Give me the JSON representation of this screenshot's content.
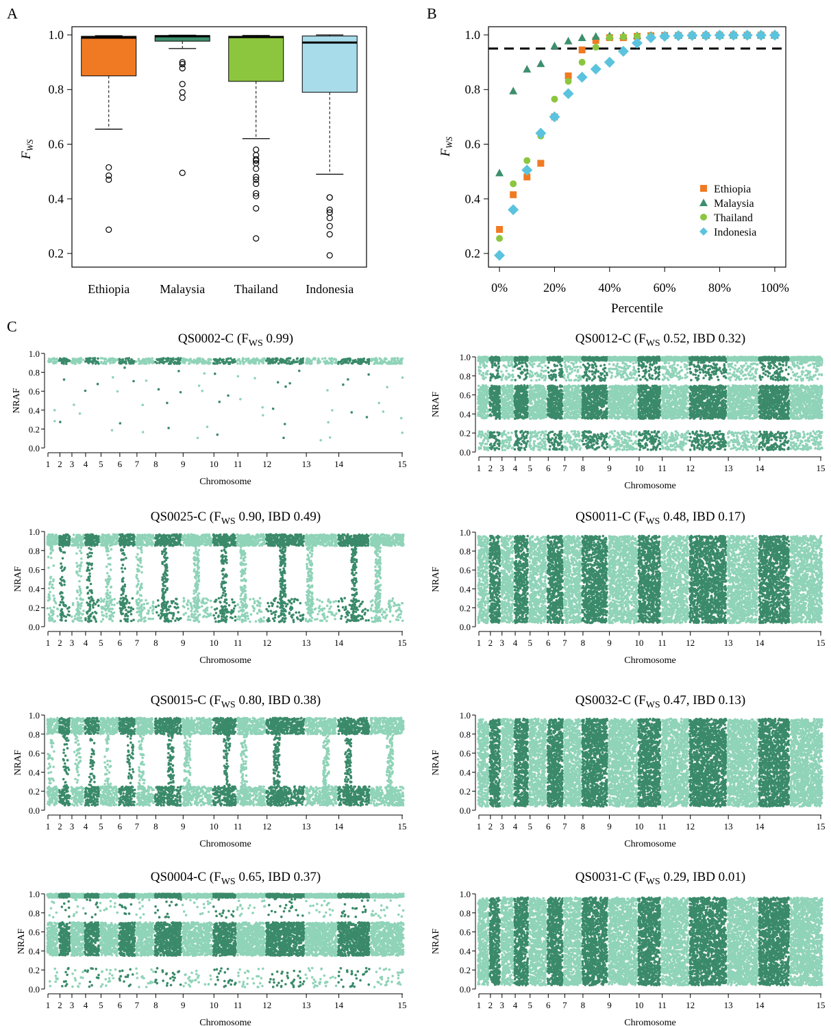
{
  "panels": {
    "a": "A",
    "b": "B",
    "c": "C"
  },
  "colors": {
    "Ethiopia": "#f07a23",
    "Malaysia": "#3d8f6e",
    "Thailand": "#8cc63f",
    "Indonesia": "#a8dcea",
    "indonesia_marker": "#5bc3de",
    "chrom_dark": "#3a8a6a",
    "chrom_light": "#8fd3b8",
    "threshold": "#000000"
  },
  "chart_data": [
    {
      "id": "A",
      "type": "box",
      "ylabel": "F",
      "ylabel_sub": "WS",
      "ylim": [
        0.15,
        1.03
      ],
      "yticks": [
        "0.2",
        "0.4",
        "0.6",
        "0.8",
        "1.0"
      ],
      "categories": [
        "Ethiopia",
        "Malaysia",
        "Thailand",
        "Indonesia"
      ],
      "boxes": [
        {
          "name": "Ethiopia",
          "whisker_low": 0.655,
          "q1": 0.85,
          "median": 0.99,
          "q3": 0.995,
          "whisker_high": 0.997,
          "outliers": [
            0.515,
            0.485,
            0.47,
            0.287
          ]
        },
        {
          "name": "Malaysia",
          "whisker_low": 0.95,
          "q1": 0.977,
          "median": 0.995,
          "q3": 0.998,
          "whisker_high": 0.999,
          "outliers": [
            0.9,
            0.893,
            0.878,
            0.82,
            0.79,
            0.77,
            0.495
          ]
        },
        {
          "name": "Thailand",
          "whisker_low": 0.62,
          "q1": 0.83,
          "median": 0.992,
          "q3": 0.995,
          "whisker_high": 0.998,
          "outliers": [
            0.58,
            0.56,
            0.545,
            0.54,
            0.53,
            0.51,
            0.48,
            0.47,
            0.455,
            0.42,
            0.41,
            0.365,
            0.255
          ]
        },
        {
          "name": "Indonesia",
          "whisker_low": 0.49,
          "q1": 0.79,
          "median": 0.972,
          "q3": 0.996,
          "whisker_high": 1.0,
          "outliers": [
            0.405,
            0.405,
            0.36,
            0.35,
            0.33,
            0.3,
            0.27,
            0.193
          ]
        }
      ]
    },
    {
      "id": "B",
      "type": "scatter",
      "ylabel": "F",
      "ylabel_sub": "WS",
      "xlabel": "Percentile",
      "ylim": [
        0.15,
        1.03
      ],
      "xlim": [
        -0.04,
        1.04
      ],
      "yticks": [
        "0.2",
        "0.4",
        "0.6",
        "0.8",
        "1.0"
      ],
      "xticks": [
        "0%",
        "20%",
        "40%",
        "60%",
        "80%",
        "100%"
      ],
      "threshold": 0.95,
      "x": [
        0,
        0.05,
        0.1,
        0.15,
        0.2,
        0.25,
        0.3,
        0.35,
        0.4,
        0.45,
        0.5,
        0.55,
        0.6,
        0.65,
        0.7,
        0.75,
        0.8,
        0.85,
        0.9,
        0.95,
        1.0
      ],
      "series": [
        {
          "name": "Ethiopia",
          "marker": "square",
          "values": [
            0.288,
            0.415,
            0.48,
            0.53,
            0.7,
            0.85,
            0.945,
            0.98,
            0.99,
            0.99,
            0.995,
            0.997,
            0.998,
            0.998,
            0.998,
            0.998,
            0.999,
            0.999,
            0.999,
            0.999,
            0.999
          ]
        },
        {
          "name": "Malaysia",
          "marker": "triangle",
          "values": [
            0.495,
            0.795,
            0.875,
            0.895,
            0.96,
            0.978,
            0.99,
            0.995,
            0.997,
            0.998,
            0.998,
            0.999,
            0.999,
            0.999,
            0.999,
            0.999,
            0.999,
            0.999,
            0.999,
            0.999,
            0.999
          ]
        },
        {
          "name": "Thailand",
          "marker": "circle",
          "values": [
            0.255,
            0.455,
            0.54,
            0.63,
            0.765,
            0.83,
            0.9,
            0.955,
            0.99,
            0.993,
            0.995,
            0.996,
            0.997,
            0.997,
            0.998,
            0.998,
            0.998,
            0.999,
            0.999,
            0.999,
            0.999
          ]
        },
        {
          "name": "Indonesia",
          "marker": "diamond",
          "values": [
            0.193,
            0.36,
            0.505,
            0.64,
            0.7,
            0.785,
            0.845,
            0.875,
            0.9,
            0.94,
            0.97,
            0.99,
            0.995,
            0.997,
            0.998,
            0.998,
            0.999,
            0.999,
            0.999,
            0.999,
            0.999
          ]
        }
      ]
    }
  ],
  "nraf_panels": [
    {
      "title": "QS0002-C (F",
      "sub": "WS",
      "rest": " 0.99)",
      "pattern": "clonal"
    },
    {
      "title": "QS0012-C (F",
      "sub": "WS",
      "rest": " 0.52, IBD 0.32)",
      "pattern": "balanced"
    },
    {
      "title": "QS0025-C (F",
      "sub": "WS",
      "rest": " 0.90, IBD 0.49)",
      "pattern": "minor"
    },
    {
      "title": "QS0011-C (F",
      "sub": "WS",
      "rest": " 0.48, IBD 0.17)",
      "pattern": "dense"
    },
    {
      "title": "QS0015-C (F",
      "sub": "WS",
      "rest": " 0.80, IBD 0.38)",
      "pattern": "mixed"
    },
    {
      "title": "QS0032-C (F",
      "sub": "WS",
      "rest": " 0.47, IBD 0.13)",
      "pattern": "full"
    },
    {
      "title": "QS0004-C (F",
      "sub": "WS",
      "rest": " 0.65, IBD 0.37)",
      "pattern": "balanced2"
    },
    {
      "title": "QS0031-C (F",
      "sub": "WS",
      "rest": " 0.29, IBD 0.01)",
      "pattern": "full"
    }
  ],
  "nraf_axes": {
    "ylabel": "NRAF",
    "xlabel": "Chromosome",
    "yticks": [
      "0.0",
      "0.2",
      "0.4",
      "0.6",
      "0.8",
      "1.0"
    ],
    "chromosomes": [
      "1",
      "2",
      "3",
      "4",
      "5",
      "6",
      "7",
      "8",
      "9",
      "10",
      "11",
      "12",
      "13",
      "14",
      "15"
    ]
  }
}
